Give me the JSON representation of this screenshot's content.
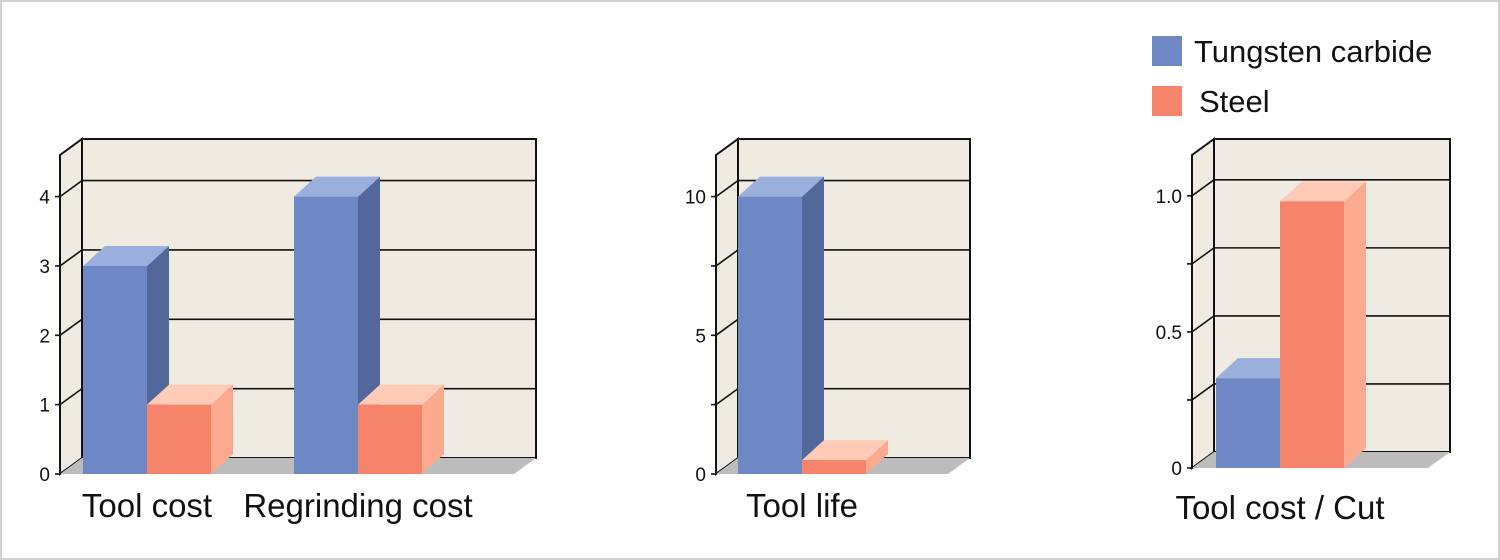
{
  "legend": {
    "items": [
      {
        "label": "Tungsten carbide",
        "color_front": "#6d88c4",
        "color_side": "#52689b",
        "color_top": "#9aafdc"
      },
      {
        "label": "Steel",
        "color_front": "#f5846a",
        "color_side": "#fba98f",
        "color_top": "#ffcbb6"
      }
    ]
  },
  "colors": {
    "wall": "#efebe2",
    "floor": "#bcbcbc",
    "axis": "#111111"
  },
  "chart_data": [
    {
      "type": "bar",
      "categories": [
        "Tool cost",
        "Regrinding cost"
      ],
      "series": [
        {
          "name": "Tungsten carbide",
          "values": [
            3,
            4
          ]
        },
        {
          "name": "Steel",
          "values": [
            1,
            1
          ]
        }
      ],
      "ylim": [
        0,
        4.6
      ],
      "yticks": [
        0,
        1,
        2,
        3,
        4
      ],
      "ytick_labels": [
        "0",
        "1",
        "2",
        "3",
        "4"
      ],
      "grid": true
    },
    {
      "type": "bar",
      "categories": [
        "Tool life"
      ],
      "series": [
        {
          "name": "Tungsten carbide",
          "values": [
            10
          ]
        },
        {
          "name": "Steel",
          "values": [
            0.5
          ]
        }
      ],
      "ylim": [
        0,
        11.5
      ],
      "yticks": [
        0,
        2.5,
        5,
        7.5,
        10
      ],
      "ytick_labels": [
        "0",
        "",
        "5",
        "",
        "10"
      ],
      "grid": true
    },
    {
      "type": "bar",
      "categories": [
        "Tool cost / Cut"
      ],
      "series": [
        {
          "name": "Tungsten carbide",
          "values": [
            0.33
          ]
        },
        {
          "name": "Steel",
          "values": [
            0.98
          ]
        }
      ],
      "ylim": [
        0,
        1.15
      ],
      "yticks": [
        0,
        0.25,
        0.5,
        0.75,
        1.0
      ],
      "ytick_labels": [
        "0",
        "",
        "0.5",
        "",
        "1.0"
      ],
      "grid": true
    }
  ]
}
